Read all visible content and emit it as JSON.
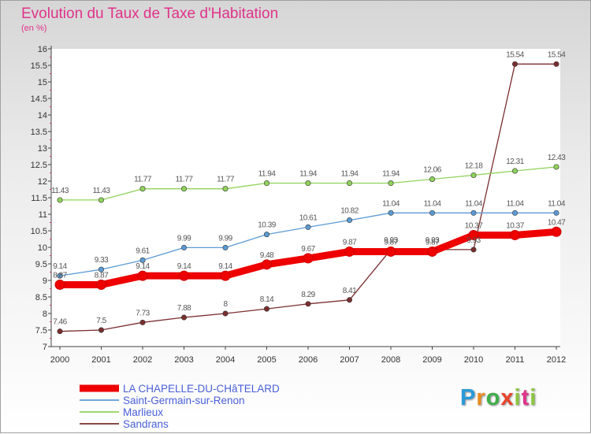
{
  "title": "Evolution du Taux de Taxe d'Habitation",
  "unit_label": "(en %)",
  "logo": "Proxiti",
  "chart_data": {
    "type": "line",
    "x": [
      2000,
      2001,
      2002,
      2003,
      2004,
      2005,
      2006,
      2007,
      2008,
      2009,
      2010,
      2011,
      2012
    ],
    "ylim": [
      7,
      16
    ],
    "yticks": [
      "7",
      "7.5",
      "8",
      "8.5",
      "9",
      "9.5",
      "10",
      "10.5",
      "11",
      "11.5",
      "12",
      "12.5",
      "13",
      "13.5",
      "14",
      "14.5",
      "15",
      "15.5",
      "16"
    ],
    "grid": false,
    "legend_position": "bottom-left",
    "series": [
      {
        "name": "LA CHAPELLE-DU-CHâTELARD",
        "color": "#ee0000",
        "values": [
          8.87,
          8.87,
          9.14,
          9.14,
          9.14,
          9.48,
          9.67,
          9.87,
          9.87,
          9.87,
          10.37,
          10.37,
          10.47
        ]
      },
      {
        "name": "Saint-Germain-sur-Renon",
        "color": "#5b9bd5",
        "values": [
          9.14,
          9.33,
          9.61,
          9.99,
          9.99,
          10.39,
          10.61,
          10.82,
          11.04,
          11.04,
          11.04,
          11.04,
          11.04
        ]
      },
      {
        "name": "Marlieux",
        "color": "#8fd35a",
        "values": [
          11.43,
          11.43,
          11.77,
          11.77,
          11.77,
          11.94,
          11.94,
          11.94,
          11.94,
          12.06,
          12.18,
          12.31,
          12.43
        ]
      },
      {
        "name": "Sandrans",
        "color": "#7a2e2e",
        "values": [
          7.46,
          7.5,
          7.73,
          7.88,
          8,
          8.14,
          8.29,
          8.41,
          9.93,
          9.93,
          9.93,
          15.54,
          15.54
        ]
      }
    ],
    "point_labels": [
      [
        "8.87",
        "8.87",
        "9.14",
        "9.14",
        "9.14",
        "9.48",
        "9.67",
        "9.87",
        "9.87",
        "9.87",
        "10.37",
        "10.37",
        "10.47"
      ],
      [
        "9.14",
        "9.33",
        "9.61",
        "9.99",
        "9.99",
        "10.39",
        "10.61",
        "10.82",
        "11.04",
        "11.04",
        "11.04",
        "11.04",
        "11.04"
      ],
      [
        "11.43",
        "11.43",
        "11.77",
        "11.77",
        "11.77",
        "11.94",
        "11.94",
        "11.94",
        "11.94",
        "12.06",
        "12.18",
        "12.31",
        "12.43"
      ],
      [
        "7.46",
        "7.5",
        "7.73",
        "7.88",
        "8",
        "8.14",
        "8.29",
        "8.41",
        "9.93",
        "9.93",
        "9.93",
        "15.54",
        "15.54"
      ]
    ]
  }
}
